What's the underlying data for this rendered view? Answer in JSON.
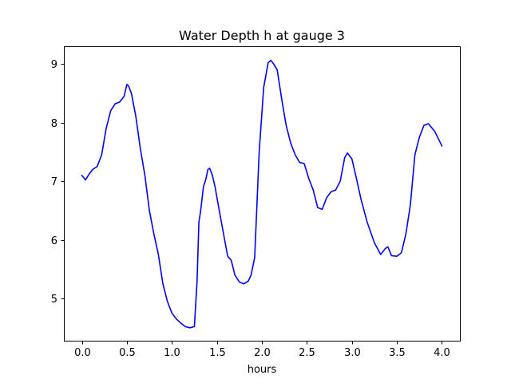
{
  "chart_data": {
    "type": "line",
    "title": "Water Depth h at gauge 3",
    "xlabel": "hours",
    "ylabel": "",
    "xlim": [
      -0.2,
      4.2
    ],
    "ylim": [
      4.28,
      9.3
    ],
    "xticks": [
      0.0,
      0.5,
      1.0,
      1.5,
      2.0,
      2.5,
      3.0,
      3.5,
      4.0
    ],
    "xtick_labels": [
      "0.0",
      "0.5",
      "1.0",
      "1.5",
      "2.0",
      "2.5",
      "3.0",
      "3.5",
      "4.0"
    ],
    "yticks": [
      5,
      6,
      7,
      8,
      9
    ],
    "ytick_labels": [
      "5",
      "6",
      "7",
      "8",
      "9"
    ],
    "grid": false,
    "series": [
      {
        "color": "#0000ff",
        "x": [
          0.0,
          0.04,
          0.08,
          0.12,
          0.17,
          0.22,
          0.27,
          0.32,
          0.37,
          0.42,
          0.47,
          0.5,
          0.52,
          0.55,
          0.6,
          0.65,
          0.7,
          0.75,
          0.8,
          0.85,
          0.9,
          0.95,
          1.0,
          1.05,
          1.1,
          1.15,
          1.2,
          1.25,
          1.28,
          1.3,
          1.32,
          1.35,
          1.38,
          1.4,
          1.42,
          1.45,
          1.48,
          1.55,
          1.62,
          1.66,
          1.7,
          1.75,
          1.8,
          1.85,
          1.88,
          1.92,
          1.97,
          2.02,
          2.07,
          2.1,
          2.13,
          2.17,
          2.22,
          2.27,
          2.32,
          2.37,
          2.42,
          2.47,
          2.52,
          2.57,
          2.62,
          2.67,
          2.72,
          2.77,
          2.82,
          2.87,
          2.92,
          2.95,
          3.0,
          3.05,
          3.1,
          3.17,
          3.25,
          3.32,
          3.37,
          3.4,
          3.44,
          3.5,
          3.55,
          3.6,
          3.65,
          3.7,
          3.75,
          3.8,
          3.85,
          3.92,
          4.0
        ],
        "y": [
          7.1,
          7.02,
          7.12,
          7.2,
          7.25,
          7.45,
          7.9,
          8.2,
          8.32,
          8.35,
          8.45,
          8.65,
          8.62,
          8.5,
          8.1,
          7.55,
          7.1,
          6.5,
          6.1,
          5.75,
          5.25,
          4.95,
          4.75,
          4.65,
          4.58,
          4.52,
          4.5,
          4.52,
          5.3,
          6.3,
          6.5,
          6.9,
          7.05,
          7.2,
          7.22,
          7.1,
          6.9,
          6.3,
          5.72,
          5.65,
          5.4,
          5.28,
          5.25,
          5.3,
          5.4,
          5.7,
          7.5,
          8.6,
          9.02,
          9.06,
          9.0,
          8.9,
          8.4,
          7.95,
          7.65,
          7.45,
          7.32,
          7.3,
          7.05,
          6.85,
          6.55,
          6.52,
          6.72,
          6.82,
          6.85,
          7.0,
          7.4,
          7.48,
          7.38,
          7.05,
          6.7,
          6.3,
          5.95,
          5.75,
          5.85,
          5.88,
          5.73,
          5.72,
          5.78,
          6.1,
          6.6,
          7.45,
          7.75,
          7.95,
          7.98,
          7.85,
          7.6
        ]
      }
    ]
  }
}
